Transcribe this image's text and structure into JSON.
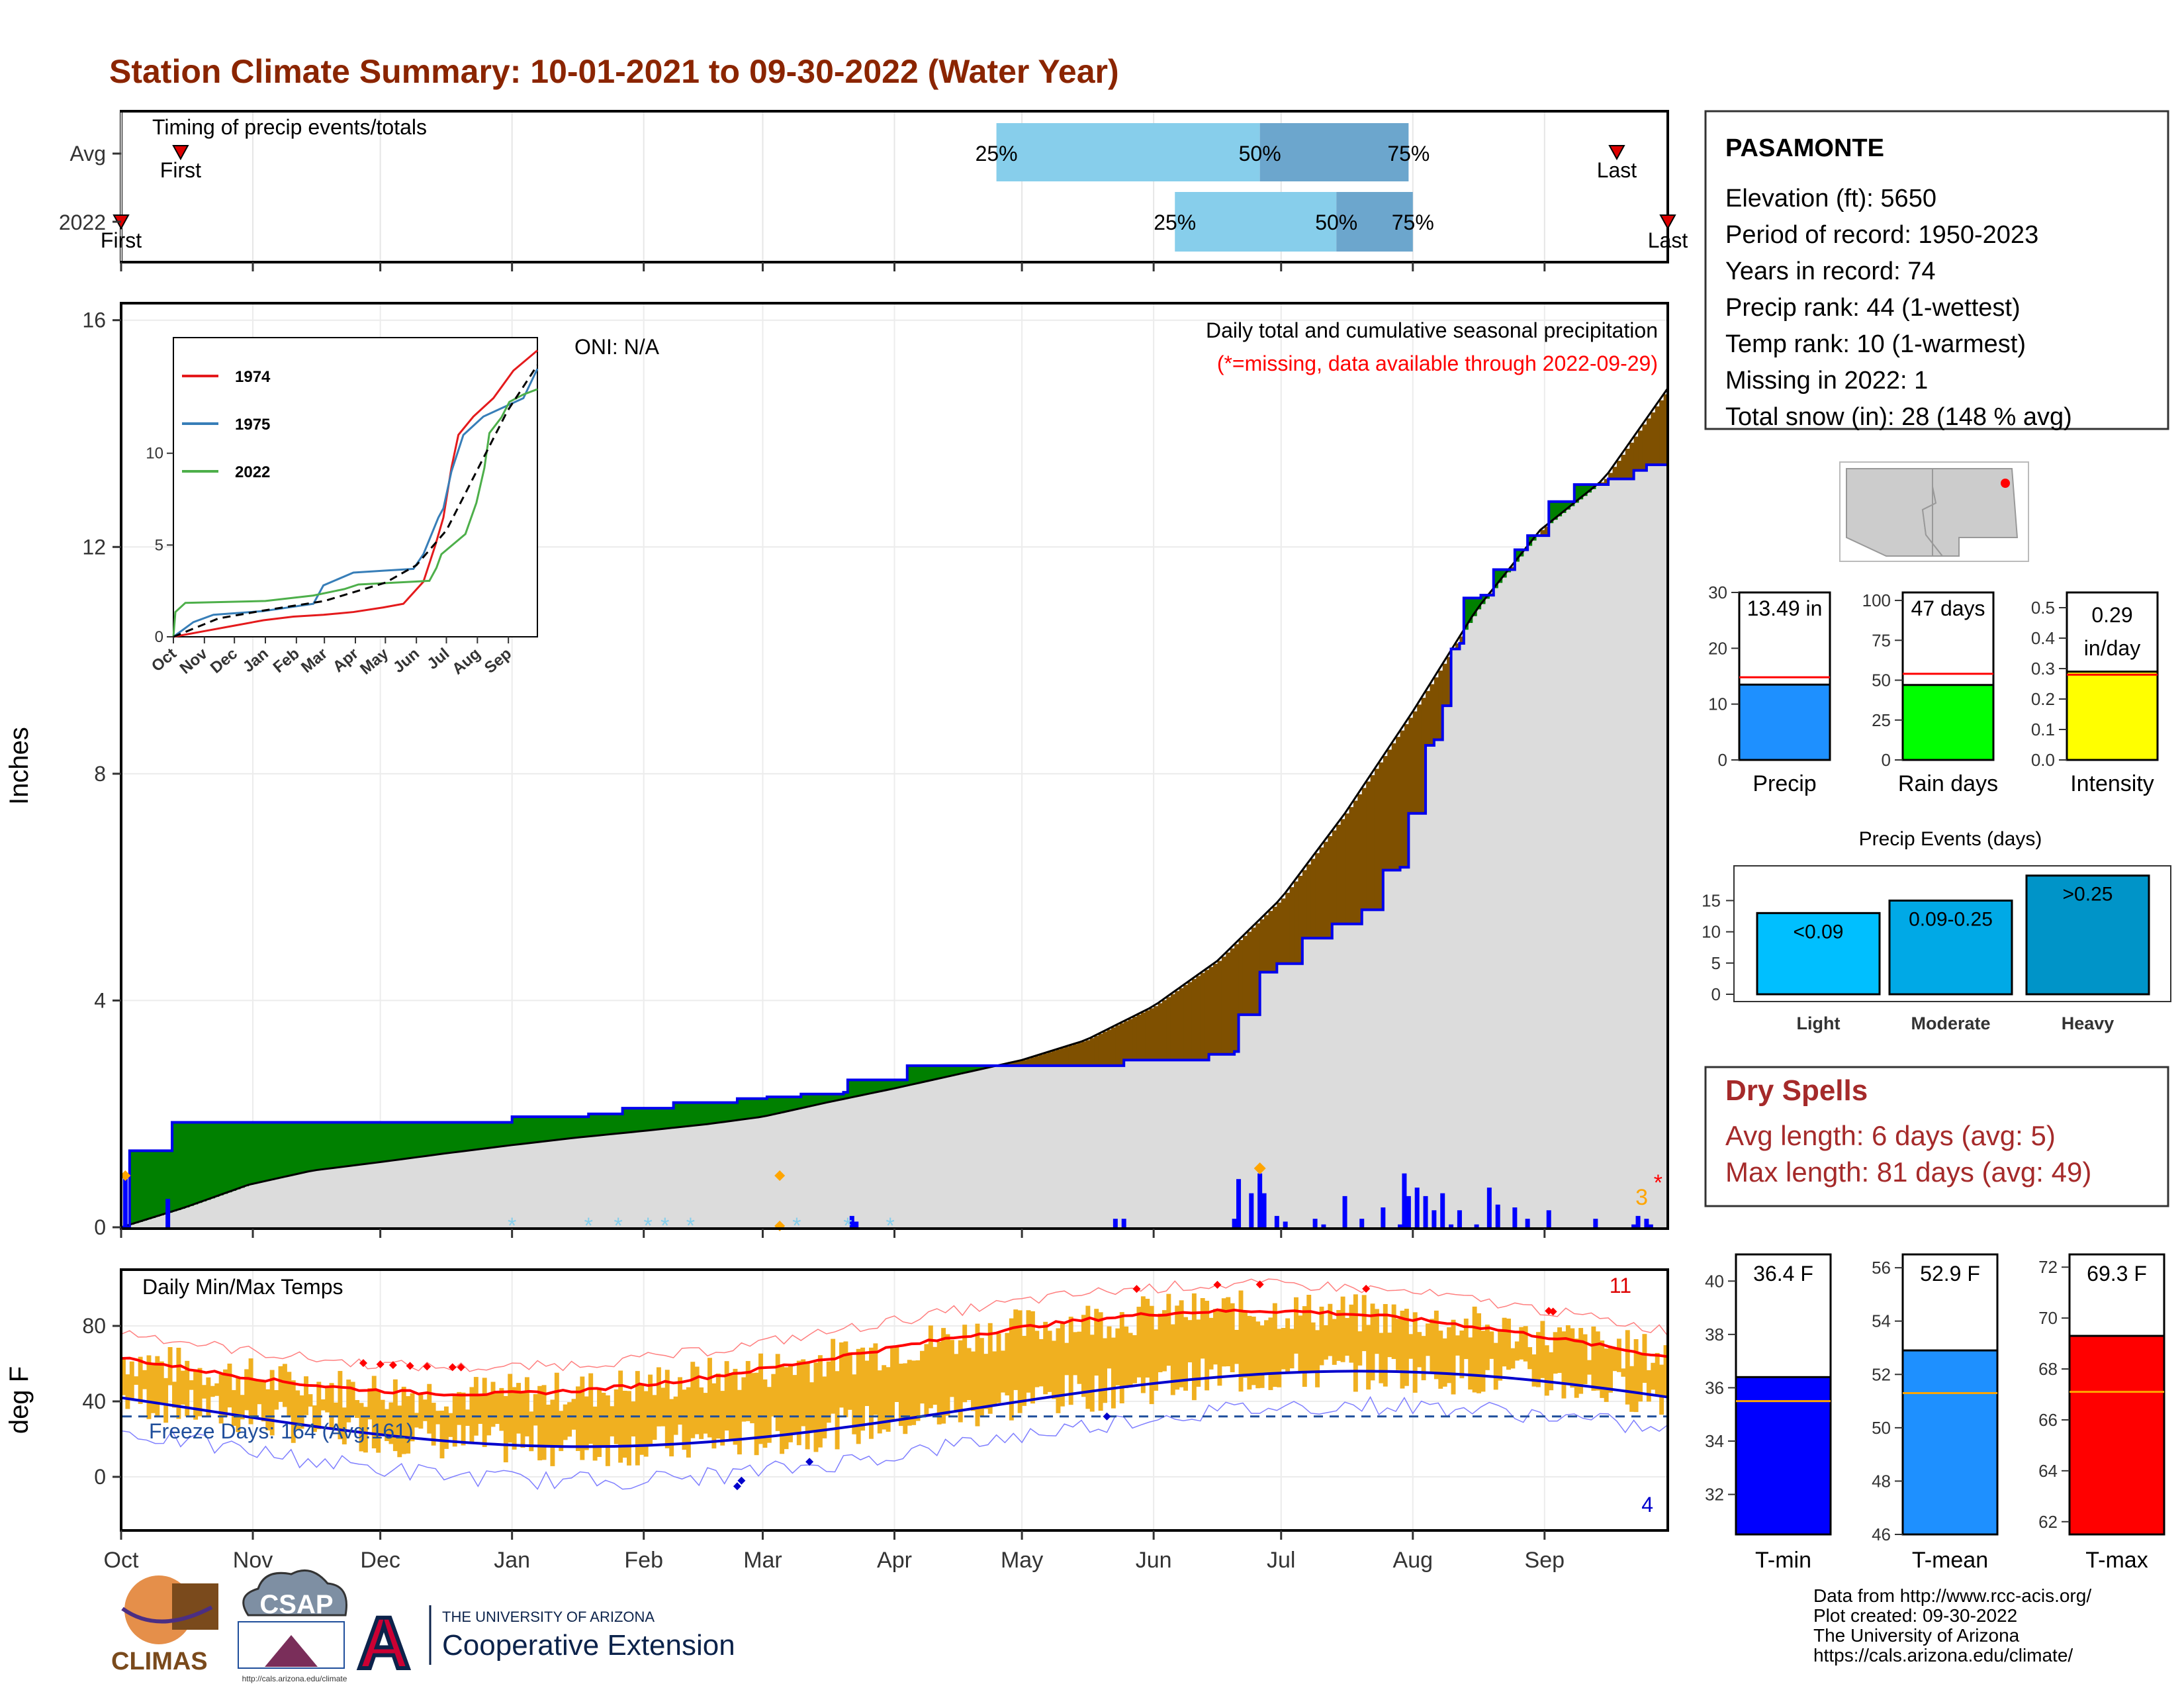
{
  "title": "Station Climate Summary: 10-01-2021 to 09-30-2022 (Water Year)",
  "colors": {
    "title": "#8B2500",
    "dry_spell": "#A52A2A",
    "precip_daily": "#0000FF",
    "surplus": "#008000",
    "deficit": "#7F5000",
    "normal_fill": "#DCDCDC",
    "temp_bar": "#F0B020",
    "avg_max": "#FF0000",
    "avg_min": "#0000CC"
  },
  "months": [
    "Oct",
    "Nov",
    "Dec",
    "Jan",
    "Feb",
    "Mar",
    "Apr",
    "May",
    "Jun",
    "Jul",
    "Aug",
    "Sep"
  ],
  "timing": {
    "label": "Timing of precip events/totals",
    "rows": [
      "Avg",
      "2022"
    ],
    "avg": {
      "first_label": "First",
      "last_label": "Last",
      "first_day": 14,
      "last_day": 352,
      "p25": 206,
      "p50": 268,
      "p75": 303
    },
    "y2022": {
      "first_label": "First",
      "last_label": "Last",
      "first_day": 0,
      "last_day": 364,
      "p25": 248,
      "p50": 286,
      "p75": 304
    },
    "pct_labels": [
      "25%",
      "50%",
      "75%"
    ]
  },
  "precip_panel": {
    "ylabel": "Inches",
    "yticks": [
      0,
      4,
      8,
      12,
      16
    ],
    "oni": "ONI: N/A",
    "caption": "Daily total and cumulative seasonal precipitation",
    "missing_note": "(*=missing, data available through 2022-09-29)",
    "snow_count": "3",
    "missing_marker": "*",
    "cumulative_2022": [
      [
        0,
        0
      ],
      [
        2,
        1.35
      ],
      [
        11,
        1.35
      ],
      [
        12,
        1.85
      ],
      [
        91,
        1.85
      ],
      [
        92,
        1.95
      ],
      [
        110,
        2.0
      ],
      [
        118,
        2.1
      ],
      [
        130,
        2.2
      ],
      [
        145,
        2.27
      ],
      [
        152,
        2.3
      ],
      [
        160,
        2.35
      ],
      [
        170,
        2.38
      ],
      [
        171,
        2.6
      ],
      [
        184,
        2.6
      ],
      [
        185,
        2.85
      ],
      [
        235,
        2.85
      ],
      [
        236,
        2.95
      ],
      [
        255,
        2.95
      ],
      [
        256,
        3.05
      ],
      [
        262,
        3.1
      ],
      [
        263,
        3.75
      ],
      [
        267,
        3.75
      ],
      [
        268,
        4.5
      ],
      [
        272,
        4.65
      ],
      [
        278,
        5.1
      ],
      [
        285,
        5.35
      ],
      [
        292,
        5.6
      ],
      [
        297,
        6.3
      ],
      [
        301,
        6.35
      ],
      [
        303,
        7.3
      ],
      [
        307,
        8.5
      ],
      [
        309,
        8.6
      ],
      [
        311,
        9.2
      ],
      [
        313,
        10.2
      ],
      [
        315,
        10.3
      ],
      [
        316,
        11.1
      ],
      [
        320,
        11.15
      ],
      [
        323,
        11.6
      ],
      [
        328,
        11.95
      ],
      [
        331,
        12.2
      ],
      [
        336,
        12.8
      ],
      [
        342,
        13.1
      ],
      [
        350,
        13.2
      ],
      [
        356,
        13.35
      ],
      [
        359,
        13.45
      ],
      [
        364,
        13.49
      ]
    ],
    "normal_cumulative": [
      [
        0,
        0
      ],
      [
        15,
        0.35
      ],
      [
        30,
        0.75
      ],
      [
        45,
        1.0
      ],
      [
        61,
        1.15
      ],
      [
        76,
        1.3
      ],
      [
        92,
        1.45
      ],
      [
        107,
        1.58
      ],
      [
        123,
        1.7
      ],
      [
        138,
        1.82
      ],
      [
        151,
        1.95
      ],
      [
        166,
        2.2
      ],
      [
        182,
        2.45
      ],
      [
        197,
        2.7
      ],
      [
        212,
        2.95
      ],
      [
        227,
        3.3
      ],
      [
        243,
        3.9
      ],
      [
        258,
        4.7
      ],
      [
        273,
        5.8
      ],
      [
        288,
        7.3
      ],
      [
        304,
        9.1
      ],
      [
        319,
        10.9
      ],
      [
        334,
        12.3
      ],
      [
        349,
        13.2
      ],
      [
        364,
        14.8
      ]
    ],
    "daily_bars": [
      [
        1,
        0.9
      ],
      [
        11,
        0.5
      ],
      [
        172,
        0.2
      ],
      [
        173,
        0.1
      ],
      [
        234,
        0.15
      ],
      [
        236,
        0.15
      ],
      [
        262,
        0.15
      ],
      [
        263,
        0.85
      ],
      [
        266,
        0.6
      ],
      [
        268,
        0.95
      ],
      [
        269,
        0.6
      ],
      [
        272,
        0.2
      ],
      [
        274,
        0.1
      ],
      [
        281,
        0.15
      ],
      [
        283,
        0.05
      ],
      [
        288,
        0.55
      ],
      [
        292,
        0.15
      ],
      [
        297,
        0.35
      ],
      [
        301,
        0.05
      ],
      [
        302,
        0.95
      ],
      [
        303,
        0.55
      ],
      [
        305,
        0.7
      ],
      [
        307,
        0.55
      ],
      [
        309,
        0.3
      ],
      [
        311,
        0.6
      ],
      [
        313,
        0.05
      ],
      [
        315,
        0.3
      ],
      [
        319,
        0.05
      ],
      [
        322,
        0.7
      ],
      [
        324,
        0.4
      ],
      [
        328,
        0.35
      ],
      [
        331,
        0.15
      ],
      [
        336,
        0.3
      ],
      [
        347,
        0.15
      ],
      [
        356,
        0.05
      ],
      [
        357,
        0.2
      ],
      [
        359,
        0.15
      ],
      [
        360,
        0.05
      ]
    ],
    "hail_days": [
      268
    ],
    "fog_days": [
      1,
      155
    ],
    "snow_days": [
      92,
      110,
      117,
      124,
      128,
      134,
      159,
      171,
      181
    ],
    "missing_day": 364
  },
  "inset": {
    "yticks": [
      0,
      5,
      10
    ],
    "legend": [
      {
        "name": "1974",
        "color": "#E41A1C"
      },
      {
        "name": "1975",
        "color": "#377EB8"
      },
      {
        "name": "2022",
        "color": "#4DAF4A"
      }
    ],
    "month_labels": [
      "Oct",
      "Nov",
      "Dec",
      "Jan",
      "Feb",
      "Mar",
      "Apr",
      "May",
      "Jun",
      "Jul",
      "Aug",
      "Sep"
    ],
    "series": [
      {
        "name": "1974",
        "color": "#E41A1C",
        "points": [
          [
            0,
            0
          ],
          [
            30,
            0.3
          ],
          [
            60,
            0.6
          ],
          [
            90,
            0.9
          ],
          [
            120,
            1.1
          ],
          [
            150,
            1.2
          ],
          [
            180,
            1.35
          ],
          [
            210,
            1.6
          ],
          [
            230,
            1.8
          ],
          [
            250,
            3.0
          ],
          [
            262,
            5.0
          ],
          [
            270,
            6.5
          ],
          [
            278,
            9.2
          ],
          [
            285,
            11.0
          ],
          [
            300,
            12.0
          ],
          [
            320,
            13.0
          ],
          [
            340,
            14.5
          ],
          [
            364,
            15.6
          ]
        ]
      },
      {
        "name": "1975",
        "color": "#377EB8",
        "points": [
          [
            0,
            0
          ],
          [
            20,
            0.8
          ],
          [
            40,
            1.2
          ],
          [
            90,
            1.4
          ],
          [
            140,
            1.8
          ],
          [
            150,
            2.8
          ],
          [
            180,
            3.5
          ],
          [
            210,
            3.6
          ],
          [
            240,
            3.7
          ],
          [
            250,
            4.5
          ],
          [
            265,
            6.5
          ],
          [
            270,
            7.0
          ],
          [
            278,
            9.0
          ],
          [
            290,
            11.0
          ],
          [
            310,
            12.0
          ],
          [
            330,
            12.5
          ],
          [
            350,
            13.0
          ],
          [
            364,
            14.6
          ]
        ]
      },
      {
        "name": "2022",
        "color": "#4DAF4A",
        "points": [
          [
            0,
            0
          ],
          [
            2,
            1.35
          ],
          [
            12,
            1.85
          ],
          [
            92,
            1.95
          ],
          [
            140,
            2.25
          ],
          [
            171,
            2.6
          ],
          [
            185,
            2.85
          ],
          [
            256,
            3.05
          ],
          [
            263,
            3.75
          ],
          [
            268,
            4.5
          ],
          [
            292,
            5.6
          ],
          [
            303,
            7.3
          ],
          [
            311,
            9.2
          ],
          [
            316,
            11.1
          ],
          [
            328,
            11.95
          ],
          [
            336,
            12.8
          ],
          [
            350,
            13.2
          ],
          [
            364,
            13.49
          ]
        ]
      },
      {
        "name": "normal",
        "color": "#000000",
        "dashed": true,
        "points": [
          [
            0,
            0
          ],
          [
            45,
            1.0
          ],
          [
            92,
            1.45
          ],
          [
            151,
            1.95
          ],
          [
            212,
            2.95
          ],
          [
            243,
            3.9
          ],
          [
            273,
            5.8
          ],
          [
            304,
            9.1
          ],
          [
            334,
            12.3
          ],
          [
            364,
            14.8
          ]
        ]
      }
    ]
  },
  "temp_panel": {
    "ylabel": "deg F",
    "label": "Daily Min/Max Temps",
    "yticks": [
      0,
      40,
      80
    ],
    "freeze_text": "Freeze Days: 164 (Avg:161)",
    "freeze_line": 32,
    "record_highs": "11",
    "record_lows": "4"
  },
  "info_box": {
    "station": "PASAMONTE",
    "lines": [
      "Elevation (ft): 5650",
      "Period of record: 1950-2023",
      "Years in record: 74",
      "Precip rank: 44 (1-wettest)",
      "Temp rank: 10 (1-warmest)",
      "Missing in 2022: 1",
      "Total snow (in): 28 (148 % avg)"
    ]
  },
  "mini_bars": [
    {
      "label": "Precip",
      "value_text": "13.49 in",
      "value": 13.49,
      "avg": 14.8,
      "max": 30,
      "ticks": [
        0,
        10,
        20,
        30
      ],
      "color": "#1E90FF"
    },
    {
      "label": "Rain days",
      "value_text": "47 days",
      "value": 47,
      "avg": 54,
      "max": 105,
      "ticks": [
        0,
        25,
        50,
        75,
        100
      ],
      "color": "#00FF00"
    },
    {
      "label": "Intensity",
      "value_text": "0.29 in/day",
      "value": 0.29,
      "avg": 0.28,
      "max": 0.55,
      "ticks": [
        0.0,
        0.1,
        0.2,
        0.3,
        0.4,
        0.5
      ],
      "color": "#FFFF00"
    }
  ],
  "precip_events": {
    "title": "Precip Events (days)",
    "yticks": [
      0,
      5,
      10,
      15
    ],
    "bars": [
      {
        "category": "Light",
        "label": "<0.09",
        "value": 13,
        "color": "#00BFFF"
      },
      {
        "category": "Moderate",
        "label": "0.09-0.25",
        "value": 15,
        "color": "#00A9E6"
      },
      {
        "category": "Heavy",
        "label": ">0.25",
        "value": 19,
        "color": "#0094C8"
      }
    ]
  },
  "dry_spells": {
    "title": "Dry Spells",
    "avg_length": "Avg length: 6 days (avg: 5)",
    "max_length": "Max length: 81 days (avg: 49)"
  },
  "temp_bars": [
    {
      "label": "T-min",
      "value_text": "36.4 F",
      "value": 36.4,
      "avg": 35.5,
      "min": 30.5,
      "max": 41,
      "ticks": [
        32,
        34,
        36,
        38,
        40
      ],
      "color": "#0000FF"
    },
    {
      "label": "T-mean",
      "value_text": "52.9 F",
      "value": 52.9,
      "avg": 51.3,
      "min": 46,
      "max": 56.5,
      "ticks": [
        46,
        48,
        50,
        52,
        54,
        56
      ],
      "color": "#1E90FF"
    },
    {
      "label": "T-max",
      "value_text": "69.3 F",
      "value": 69.3,
      "avg": 67.1,
      "min": 61.5,
      "max": 72.5,
      "ticks": [
        62,
        64,
        66,
        68,
        70,
        72
      ],
      "color": "#FF0000"
    }
  ],
  "footer": {
    "lines": [
      "Data from http://www.rcc-acis.org/",
      "Plot created: 09-30-2022",
      "The University of Arizona",
      "https://cals.arizona.edu/climate/"
    ],
    "climas": "CLIMAS",
    "csap": "CSAP",
    "csap_url": "http://cals.arizona.edu/climate",
    "ua_small": "THE UNIVERSITY OF ARIZONA",
    "ua_big": "Cooperative Extension",
    "ua_letter": "A"
  }
}
